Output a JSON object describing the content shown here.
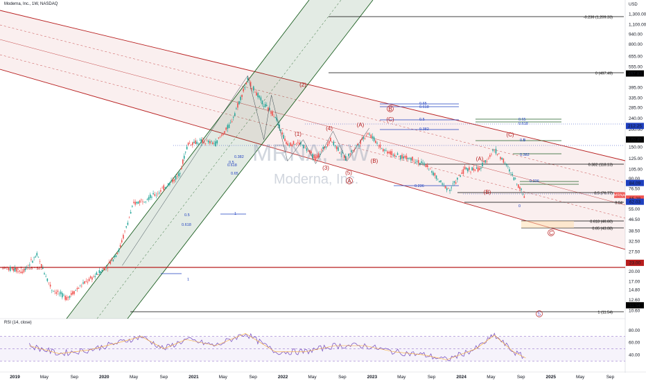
{
  "header": {
    "title": "Moderna, Inc., 1W, NASDAQ"
  },
  "watermark": {
    "symbol": "MRNA, 1W",
    "name": "Moderna, Inc."
  },
  "colors": {
    "up": "#26a69a",
    "down": "#ef5350",
    "channel_red": "#b71c1c",
    "channel_green": "#1b5e20",
    "fib_blue": "#1e3fbf",
    "rsi": "#7e57c2"
  },
  "y_axis": {
    "unit": "USD",
    "ticks": [
      "1,300.00",
      "1,100.00",
      "940.00",
      "800.00",
      "655.00",
      "555.00",
      "395.00",
      "335.00",
      "285.00",
      "240.00",
      "200.00",
      "150.00",
      "125.00",
      "105.00",
      "90.00",
      "76.50",
      "64.00",
      "55.00",
      "46.50",
      "38.50",
      "32.50",
      "27.50",
      "23.00",
      "20.00",
      "17.00",
      "14.80",
      "12.60",
      "10.60"
    ],
    "badges": [
      {
        "value": "497.83",
        "color": "#000000"
      },
      {
        "value": "212.25",
        "color": "#1e3fbf"
      },
      {
        "value": "170.45",
        "color": "#000000"
      },
      {
        "value": "84.09",
        "color": "#1e3fbf"
      },
      {
        "value": "65.28",
        "color": "#ef5350"
      },
      {
        "value": "62.03",
        "color": "#1e3fbf"
      },
      {
        "value": "23.00",
        "color": "#b71c1c"
      },
      {
        "value": "11.54",
        "color": "#000000"
      }
    ],
    "ticker_tag": "MRNA"
  },
  "x_axis": {
    "ticks": [
      "2019",
      "May",
      "Sep",
      "2020",
      "May",
      "Sep",
      "2021",
      "May",
      "Sep",
      "2022",
      "May",
      "Sep",
      "2023",
      "May",
      "Sep",
      "2024",
      "May",
      "Sep",
      "2025",
      "May",
      "Sep"
    ]
  },
  "rsi": {
    "label": "RSI (14, close)",
    "ticks": [
      "80.00",
      "60.00",
      "40.00"
    ]
  },
  "annotations": {
    "ipo": "IPO * Dec 7, 2018 * $23",
    "fib_levels": [
      "-0.236 (1,209.33)",
      "0 (497.49)",
      "0.382 (118.13)",
      "0.5 (76.77)",
      "0.54",
      "0.618 (46.60)",
      "0.65 (43.08)",
      "1 (11.54)"
    ],
    "waves": [
      "(1)",
      "(2)",
      "(3)",
      "(4)",
      "(5)",
      "(A)",
      "(B)",
      "(C)",
      "(A)",
      "(B)",
      "(C)",
      "A",
      "B",
      "C",
      "5"
    ],
    "fib_small": [
      "0.65",
      "0.618",
      "0.5",
      "0.382",
      "0.236",
      "0.618",
      "0.65",
      "0.5",
      "0.382",
      "0.618",
      "0.5",
      "0",
      "1",
      "0.65",
      "0.618",
      "0.5",
      "0.382",
      "0.236",
      "0",
      "1"
    ]
  },
  "chart_data": {
    "type": "candlestick",
    "title": "Moderna, Inc., 1W, NASDAQ",
    "ylabel": "USD",
    "yscale": "log",
    "ylim": [
      9.5,
      1500
    ],
    "xlim": [
      "2018-11-01",
      "2025-11-01"
    ],
    "series": [
      {
        "name": "price",
        "points": [
          [
            "2018-12-07",
            21
          ],
          [
            "2019-02-01",
            20
          ],
          [
            "2019-04-01",
            26
          ],
          [
            "2019-06-01",
            15
          ],
          [
            "2019-08-01",
            13
          ],
          [
            "2019-10-01",
            16
          ],
          [
            "2019-12-01",
            19
          ],
          [
            "2020-01-15",
            22
          ],
          [
            "2020-03-01",
            28
          ],
          [
            "2020-05-01",
            60
          ],
          [
            "2020-08-01",
            70
          ],
          [
            "2020-11-01",
            95
          ],
          [
            "2020-12-10",
            160
          ],
          [
            "2021-02-01",
            165
          ],
          [
            "2021-04-01",
            160
          ],
          [
            "2021-06-01",
            220
          ],
          [
            "2021-08-10",
            450
          ],
          [
            "2021-10-15",
            300
          ],
          [
            "2021-12-01",
            250
          ],
          [
            "2022-01-15",
            160
          ],
          [
            "2022-03-15",
            160
          ],
          [
            "2022-05-15",
            125
          ],
          [
            "2022-07-15",
            170
          ],
          [
            "2022-09-15",
            125
          ],
          [
            "2022-12-15",
            190
          ],
          [
            "2023-02-15",
            145
          ],
          [
            "2023-04-15",
            130
          ],
          [
            "2023-06-15",
            125
          ],
          [
            "2023-08-15",
            110
          ],
          [
            "2023-10-15",
            82
          ],
          [
            "2023-11-15",
            76
          ],
          [
            "2024-01-15",
            105
          ],
          [
            "2024-03-15",
            105
          ],
          [
            "2024-05-15",
            145
          ],
          [
            "2024-06-15",
            125
          ],
          [
            "2024-08-15",
            85
          ],
          [
            "2024-09-20",
            65
          ]
        ]
      },
      {
        "name": "RSI (14, close)",
        "points": [
          [
            "2019-03-01",
            55
          ],
          [
            "2019-07-01",
            42
          ],
          [
            "2019-11-01",
            48
          ],
          [
            "2020-03-01",
            60
          ],
          [
            "2020-06-01",
            70
          ],
          [
            "2020-09-01",
            50
          ],
          [
            "2020-12-01",
            65
          ],
          [
            "2021-04-01",
            55
          ],
          [
            "2021-08-01",
            75
          ],
          [
            "2021-12-01",
            45
          ],
          [
            "2022-04-01",
            45
          ],
          [
            "2022-08-01",
            55
          ],
          [
            "2022-12-01",
            55
          ],
          [
            "2023-04-01",
            45
          ],
          [
            "2023-08-01",
            40
          ],
          [
            "2023-11-01",
            32
          ],
          [
            "2024-03-01",
            50
          ],
          [
            "2024-05-15",
            72
          ],
          [
            "2024-08-01",
            45
          ],
          [
            "2024-09-20",
            35
          ]
        ]
      }
    ]
  }
}
